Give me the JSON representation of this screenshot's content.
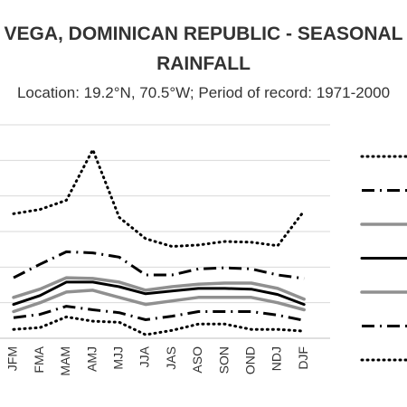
{
  "chart_data": {
    "type": "line",
    "title_line1": "VEGA, DOMINICAN REPUBLIC - SEASONAL",
    "title_line2": "RAINFALL",
    "subtitle": "Location: 19.2°N, 70.5°W; Period of record: 1971-2000",
    "categories": [
      "JFM",
      "FMA",
      "MAM",
      "AMJ",
      "MJJ",
      "JJA",
      "JAS",
      "ASO",
      "SON",
      "OND",
      "NDJ",
      "DJF"
    ],
    "ylim": [
      0,
      600
    ],
    "grid": true,
    "series": [
      {
        "style": "dotted-black",
        "color": "#000000",
        "values": [
          350,
          362,
          388,
          530,
          340,
          280,
          258,
          262,
          272,
          270,
          260,
          358
        ]
      },
      {
        "style": "dashdot-black",
        "color": "#000000",
        "values": [
          170,
          208,
          243,
          240,
          228,
          178,
          178,
          195,
          198,
          195,
          178,
          168
        ]
      },
      {
        "style": "solid-gray",
        "color": "#909090",
        "values": [
          115,
          138,
          170,
          168,
          158,
          135,
          145,
          152,
          155,
          155,
          140,
          110
        ]
      },
      {
        "style": "solid-black",
        "color": "#000000",
        "values": [
          95,
          120,
          158,
          158,
          145,
          125,
          133,
          140,
          140,
          138,
          123,
          95
        ]
      },
      {
        "style": "solid-gray",
        "color": "#909090",
        "values": [
          75,
          100,
          130,
          135,
          115,
          95,
          105,
          115,
          115,
          115,
          100,
          80
        ]
      },
      {
        "style": "dashdot-black",
        "color": "#000000",
        "values": [
          58,
          67,
          90,
          80,
          72,
          52,
          62,
          75,
          75,
          75,
          65,
          50
        ]
      },
      {
        "style": "dotted-black",
        "color": "#000000",
        "values": [
          25,
          30,
          60,
          48,
          45,
          10,
          22,
          40,
          40,
          25,
          25,
          20
        ]
      }
    ]
  }
}
